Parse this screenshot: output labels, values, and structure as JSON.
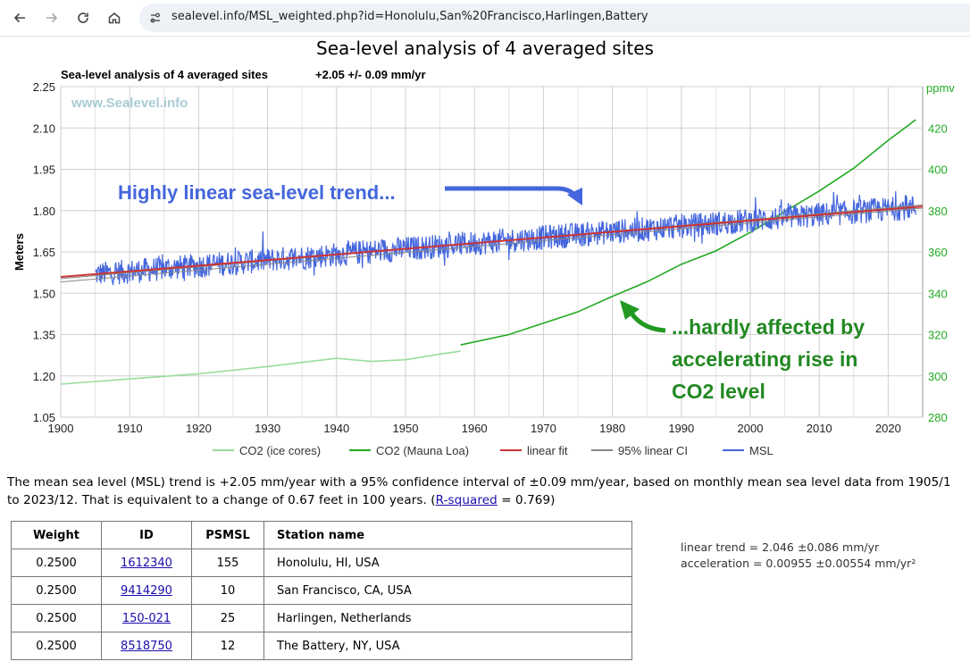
{
  "browser": {
    "url": "sealevel.info/MSL_weighted.php?id=Honolulu,San%20Francisco,Harlingen,Battery"
  },
  "page": {
    "title": "Sea-level analysis of 4 averaged sites"
  },
  "chart_data": {
    "type": "line",
    "title": "Sea-level analysis of 4 averaged sites",
    "subtitle": "+2.05 +/- 0.09 mm/yr",
    "watermark": "www.Sealevel.info",
    "xlabel": "",
    "ylabel": "Meters",
    "y2label": "ppmv",
    "xlim": [
      1900,
      2025
    ],
    "ylim": [
      1.05,
      2.25
    ],
    "y2lim": [
      280,
      440
    ],
    "xticks": [
      "1900",
      "1910",
      "1920",
      "1930",
      "1940",
      "1950",
      "1960",
      "1970",
      "1980",
      "1990",
      "2000",
      "2010",
      "2020"
    ],
    "yticks": [
      "1.05",
      "1.20",
      "1.35",
      "1.50",
      "1.65",
      "1.80",
      "1.95",
      "2.10",
      "2.25"
    ],
    "y2ticks": [
      "280",
      "300",
      "320",
      "340",
      "360",
      "380",
      "400",
      "420"
    ],
    "grid": true,
    "legend_position": "bottom",
    "series": [
      {
        "name": "CO2 (ice cores)",
        "color": "#99dd99",
        "axis": "right",
        "x": [
          1900,
          1910,
          1920,
          1930,
          1940,
          1945,
          1950,
          1955,
          1958
        ],
        "y": [
          296.0,
          298.5,
          301.0,
          304.5,
          308.5,
          307.0,
          307.8,
          310.5,
          312.0
        ]
      },
      {
        "name": "CO2 (Mauna Loa)",
        "color": "#22aa22",
        "axis": "right",
        "x": [
          1958,
          1965,
          1970,
          1975,
          1980,
          1985,
          1990,
          1995,
          2000,
          2005,
          2010,
          2015,
          2020,
          2024
        ],
        "y": [
          315.0,
          320.0,
          325.5,
          331.0,
          338.5,
          345.5,
          354.0,
          360.5,
          369.5,
          379.5,
          389.5,
          400.5,
          414.0,
          424.0
        ]
      },
      {
        "name": "linear fit",
        "color": "#cc3333",
        "axis": "left",
        "x": [
          1900,
          2025
        ],
        "y": [
          1.559,
          1.815
        ]
      },
      {
        "name": "95% linear CI",
        "color": "#888888",
        "axis": "left",
        "x": [
          1900,
          2025
        ],
        "y": [
          1.553,
          1.821
        ]
      },
      {
        "name": "MSL",
        "color": "#4466dd",
        "axis": "left",
        "x_start": 1905.0,
        "x_end": 2024.0,
        "trend_start": 1.569,
        "trend_end": 1.813,
        "noise_amplitude": 0.045
      }
    ],
    "annotations": [
      {
        "text": "Highly linear sea-level trend...",
        "color": "#4466dd"
      },
      {
        "text": "...hardly affected by",
        "color": "#228822"
      },
      {
        "text": "accelerating rise in",
        "color": "#228822"
      },
      {
        "text": "CO2 level",
        "color": "#228822"
      }
    ]
  },
  "description": {
    "part1": "The mean sea level (MSL) trend is +2.05 mm/year with a 95% confidence interval of ±0.09 mm/year, based on monthly mean sea level data from 1905/1 to 2023/12. That is equivalent to a change of 0.67 feet in 100 years. (",
    "link": "R-squared",
    "part2": " = 0.769)"
  },
  "table": {
    "headers": [
      "Weight",
      "ID",
      "PSMSL",
      "Station name"
    ],
    "rows": [
      {
        "weight": "0.2500",
        "id": "1612340",
        "psmsl": "155",
        "name": "Honolulu, HI, USA"
      },
      {
        "weight": "0.2500",
        "id": "9414290",
        "psmsl": "10",
        "name": "San Francisco, CA, USA"
      },
      {
        "weight": "0.2500",
        "id": "150-021",
        "psmsl": "25",
        "name": "Harlingen, Netherlands"
      },
      {
        "weight": "0.2500",
        "id": "8518750",
        "psmsl": "12",
        "name": "The Battery, NY, USA"
      }
    ]
  },
  "stats": {
    "trend": "linear trend = 2.046 ±0.086 mm/yr",
    "acceleration": "acceleration = 0.00955 ±0.00554 mm/yr²"
  }
}
